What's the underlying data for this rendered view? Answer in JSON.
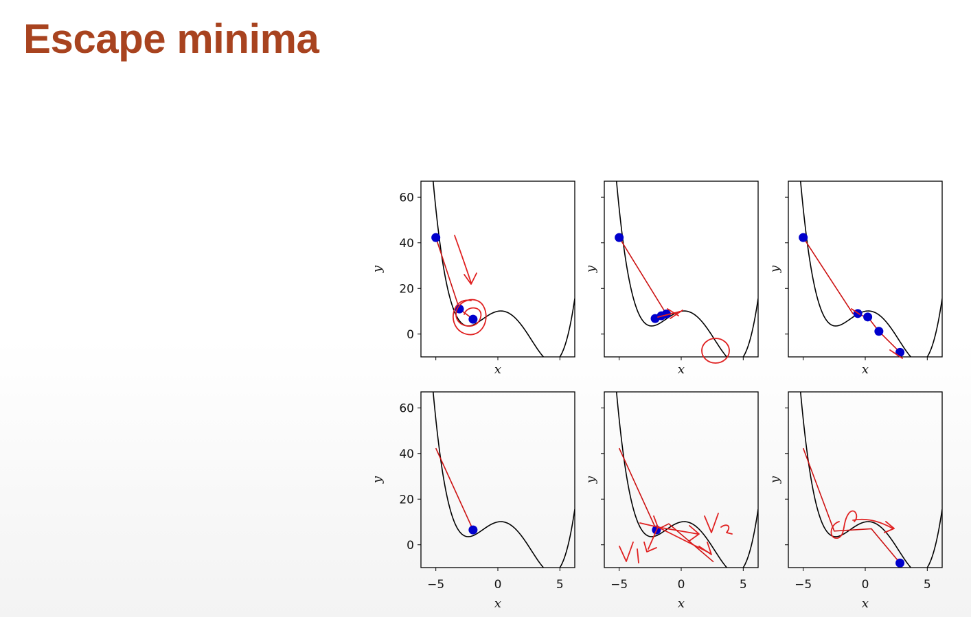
{
  "slide": {
    "title": "Escape minima"
  },
  "chart_data": [
    {
      "type": "line",
      "title": "",
      "xlabel": "x",
      "ylabel": "y",
      "xlim": [
        -6.2,
        6.2
      ],
      "ylim": [
        -10,
        67
      ],
      "xticks": [],
      "yticks": [
        "0",
        "20",
        "40",
        "60"
      ],
      "grid": false,
      "series": [
        {
          "role": "curve",
          "color": "#000000"
        },
        {
          "role": "path",
          "color": "#cc1111",
          "x": [
            -5,
            -3.1,
            -2
          ],
          "y": [
            42.3,
            11,
            6.5
          ]
        },
        {
          "role": "points",
          "color": "#0000cc",
          "x": [
            -5,
            -3.1,
            -2
          ],
          "y": [
            42.3,
            11,
            6.5
          ]
        }
      ]
    },
    {
      "type": "line",
      "title": "",
      "xlabel": "x",
      "ylabel": "",
      "xlim": [
        -6.2,
        6.2
      ],
      "ylim": [
        -10,
        67
      ],
      "xticks": [],
      "yticks": [],
      "grid": false,
      "series": [
        {
          "role": "curve",
          "color": "#000000"
        },
        {
          "role": "path",
          "color": "#cc1111",
          "x": [
            -5,
            -1.2,
            -2.1,
            -0.8,
            -1.6,
            -1.0
          ],
          "y": [
            42.3,
            8.8,
            6.8,
            9.2,
            8.0,
            9.0
          ]
        },
        {
          "role": "points",
          "color": "#0000cc",
          "x": [
            -5,
            -2.1,
            -1.6,
            -1.2
          ],
          "y": [
            42.3,
            6.8,
            8.0,
            8.8
          ]
        }
      ]
    },
    {
      "type": "line",
      "title": "",
      "xlabel": "x",
      "ylabel": "",
      "xlim": [
        -6.2,
        6.2
      ],
      "ylim": [
        -10,
        67
      ],
      "xticks": [],
      "yticks": [],
      "grid": false,
      "series": [
        {
          "role": "curve",
          "color": "#000000"
        },
        {
          "role": "path",
          "color": "#cc1111",
          "x": [
            -5,
            -1,
            0.2,
            1.1,
            2.8
          ],
          "y": [
            42.3,
            9,
            7.5,
            1.2,
            -8
          ]
        },
        {
          "role": "points",
          "color": "#0000cc",
          "x": [
            -5,
            -0.6,
            0.2,
            1.1,
            2.8
          ],
          "y": [
            42.3,
            9,
            7.5,
            1.2,
            -8
          ]
        }
      ]
    },
    {
      "type": "line",
      "title": "",
      "xlabel": "x",
      "ylabel": "y",
      "xlim": [
        -6.2,
        6.2
      ],
      "ylim": [
        -10,
        67
      ],
      "xticks": [
        "−5",
        "0",
        "5"
      ],
      "yticks": [
        "0",
        "20",
        "40",
        "60"
      ],
      "grid": false,
      "series": [
        {
          "role": "curve",
          "color": "#000000"
        },
        {
          "role": "path",
          "color": "#cc1111",
          "x": [
            -5,
            -2
          ],
          "y": [
            42.3,
            6.5
          ]
        },
        {
          "role": "points",
          "color": "#0000cc",
          "x": [
            -2
          ],
          "y": [
            6.5
          ]
        }
      ]
    },
    {
      "type": "line",
      "title": "",
      "xlabel": "x",
      "ylabel": "",
      "xlim": [
        -6.2,
        6.2
      ],
      "ylim": [
        -10,
        67
      ],
      "xticks": [
        "−5",
        "0",
        "5"
      ],
      "yticks": [],
      "grid": false,
      "series": [
        {
          "role": "curve",
          "color": "#000000"
        },
        {
          "role": "path",
          "color": "#cc1111",
          "x": [
            -5,
            -2.0,
            -1.0,
            2.6
          ],
          "y": [
            42.3,
            6.5,
            9.2,
            -7.5
          ]
        },
        {
          "role": "points",
          "color": "#0000cc",
          "x": [
            -2.0
          ],
          "y": [
            6.5
          ]
        }
      ]
    },
    {
      "type": "line",
      "title": "",
      "xlabel": "x",
      "ylabel": "",
      "xlim": [
        -6.2,
        6.2
      ],
      "ylim": [
        -10,
        67
      ],
      "xticks": [
        "−5",
        "0",
        "5"
      ],
      "yticks": [],
      "grid": false,
      "series": [
        {
          "role": "curve",
          "color": "#000000"
        },
        {
          "role": "path",
          "color": "#cc1111",
          "x": [
            -5,
            -2.5,
            0.5,
            2.8
          ],
          "y": [
            42.3,
            6,
            7,
            -8
          ]
        },
        {
          "role": "points",
          "color": "#0000cc",
          "x": [
            2.8
          ],
          "y": [
            -8
          ]
        }
      ]
    }
  ],
  "annotations": {
    "panel5_labels": [
      "V1",
      "V2"
    ],
    "color": "#e02020"
  }
}
